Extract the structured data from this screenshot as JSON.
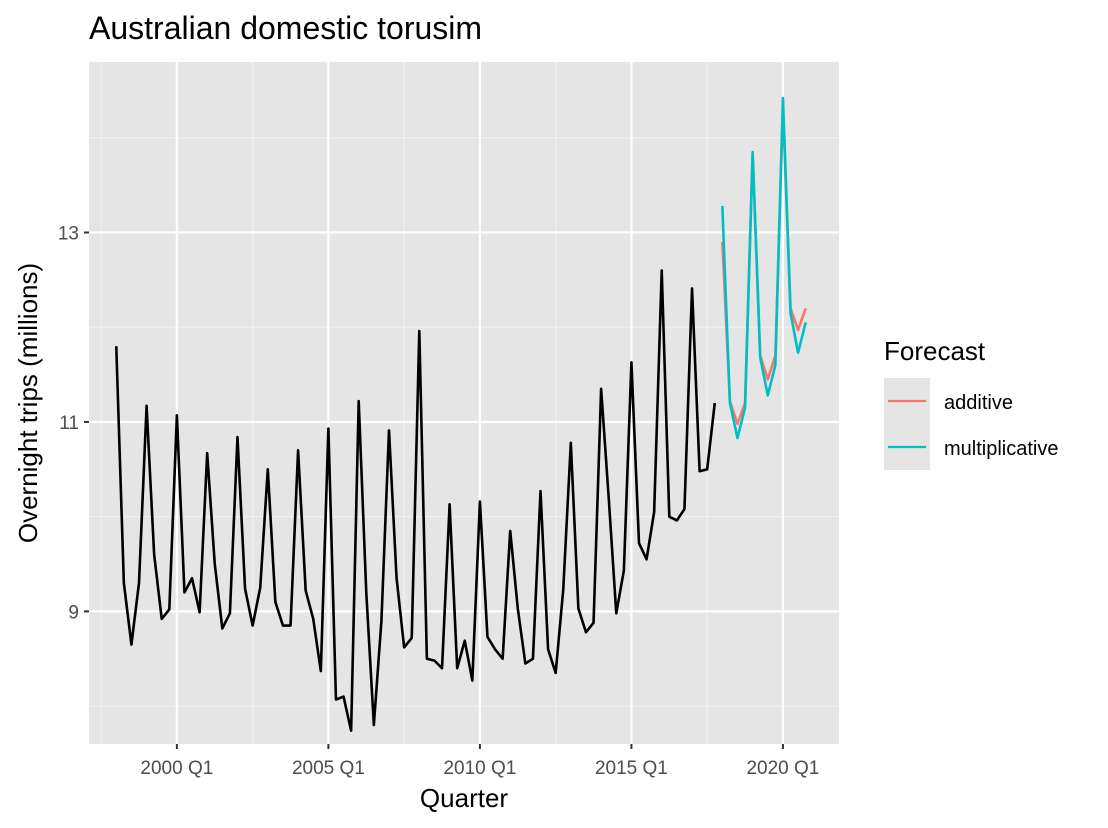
{
  "chart_data": {
    "type": "line",
    "title": "Australian domestic torusim",
    "xlabel": "Quarter",
    "ylabel": "Overnight trips (millions)",
    "x_tick_labels": [
      "2000 Q1",
      "2005 Q1",
      "2010 Q1",
      "2015 Q1",
      "2020 Q1"
    ],
    "x_tick_years": [
      2000,
      2005,
      2010,
      2015,
      2020
    ],
    "y_ticks": [
      9,
      11,
      13
    ],
    "y_tick_labels": [
      "9",
      "11",
      "13"
    ],
    "xlim": [
      1997.1,
      2021.85
    ],
    "ylim": [
      7.6,
      14.8
    ],
    "grid": true,
    "legend_position": "right",
    "legend": {
      "title": "Forecast",
      "entries": [
        "additive",
        "multiplicative"
      ]
    },
    "history": {
      "name": "",
      "color": "#000000",
      "start": "1998 Q1",
      "values": [
        11.8,
        9.3,
        8.65,
        9.3,
        11.17,
        9.6,
        8.92,
        9.02,
        11.07,
        9.2,
        9.35,
        8.99,
        10.67,
        9.5,
        8.82,
        8.98,
        10.84,
        9.24,
        8.85,
        9.25,
        10.5,
        9.1,
        8.85,
        8.85,
        10.7,
        9.22,
        8.92,
        8.37,
        10.93,
        8.07,
        8.1,
        7.74,
        11.22,
        9.2,
        7.8,
        8.9,
        10.91,
        9.35,
        8.62,
        8.72,
        11.96,
        8.5,
        8.48,
        8.4,
        10.13,
        8.4,
        8.69,
        8.27,
        10.16,
        8.73,
        8.6,
        8.5,
        9.85,
        9.03,
        8.45,
        8.5,
        10.27,
        8.6,
        8.35,
        9.23,
        10.78,
        9.03,
        8.78,
        8.88,
        11.35,
        10.2,
        8.98,
        9.43,
        11.63,
        9.72,
        9.55,
        10.05,
        12.6,
        10.0,
        9.96,
        10.08,
        12.41,
        10.48,
        10.5,
        11.2
      ]
    },
    "forecast_start": "2018 Q1",
    "series": [
      {
        "name": "additive",
        "color": "#F8766D",
        "values": [
          12.9,
          11.22,
          10.98,
          11.2,
          13.82,
          11.7,
          11.45,
          11.7,
          14.32,
          12.2,
          11.97,
          12.2
        ]
      },
      {
        "name": "multiplicative",
        "color": "#00BFC4",
        "values": [
          13.28,
          11.2,
          10.83,
          11.15,
          13.85,
          11.68,
          11.28,
          11.6,
          14.42,
          12.15,
          11.73,
          12.05
        ]
      }
    ],
    "colors": {
      "panel_background": "#E5E5E5",
      "grid_major": "#FFFFFF",
      "grid_minor": "#F2F2F2",
      "tick_text": "#4D4D4D"
    }
  }
}
